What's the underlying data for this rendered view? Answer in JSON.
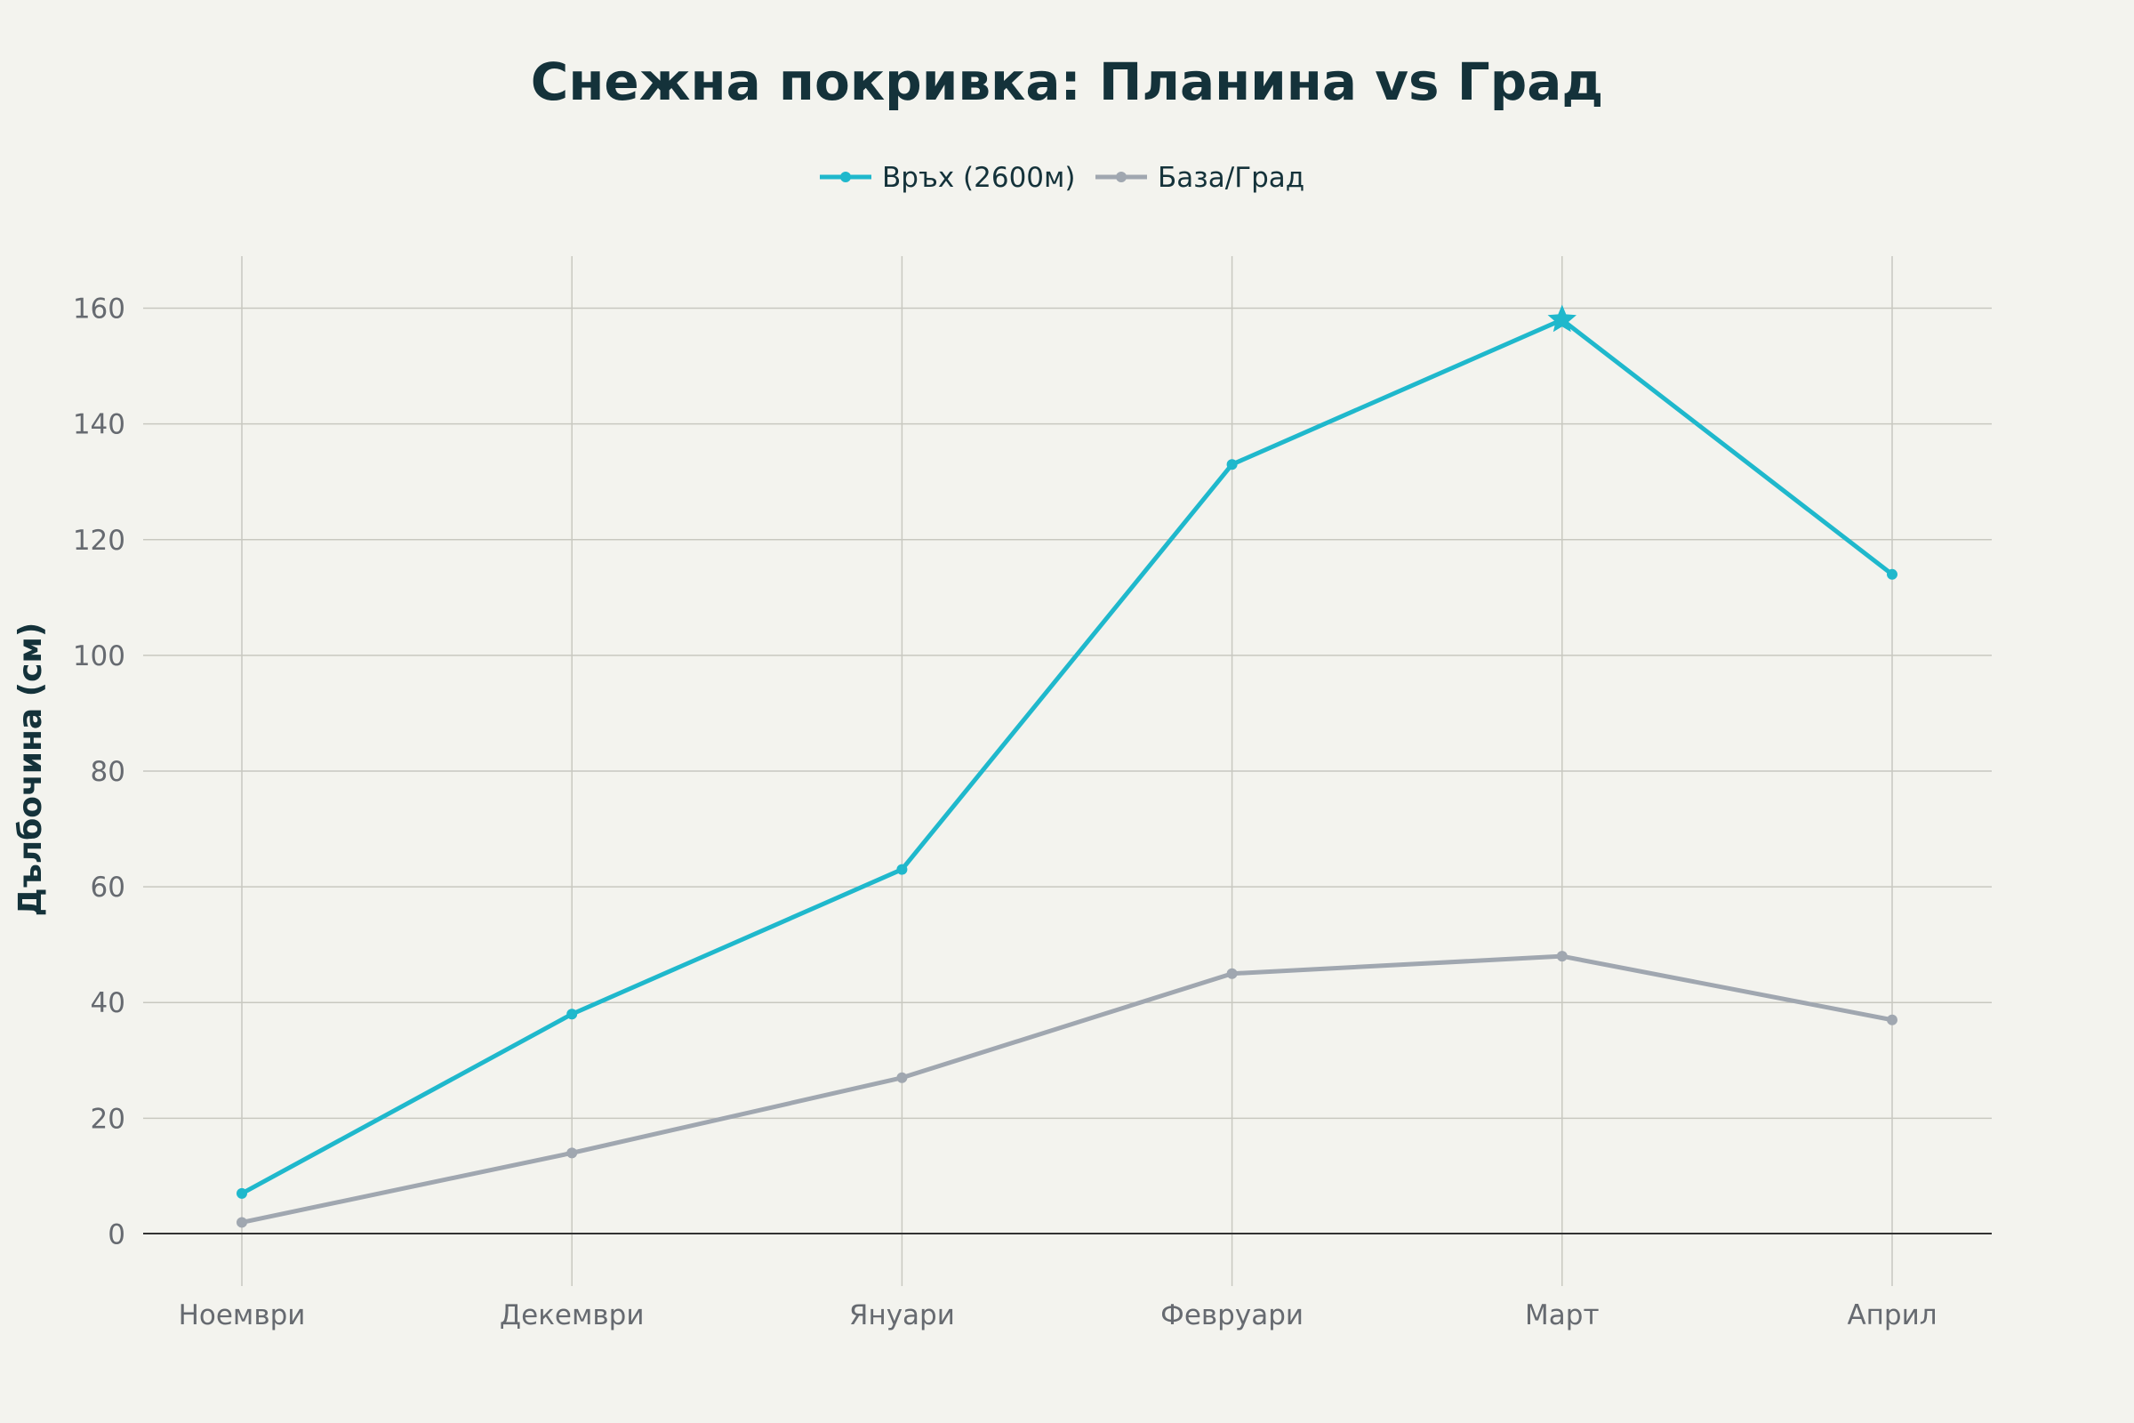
{
  "chart_data": {
    "type": "line",
    "title": "Снежна покривка: Планина vs Град",
    "xlabel": "",
    "ylabel": "Дълбочина (см)",
    "categories": [
      "Ноември",
      "Декември",
      "Януари",
      "Февруари",
      "Март",
      "Април"
    ],
    "series": [
      {
        "name": "Връх (2600м)",
        "values": [
          7,
          38,
          63,
          133,
          158,
          114
        ],
        "color": "#1fb8cc",
        "highlight": {
          "category": "Март",
          "marker": "star"
        }
      },
      {
        "name": "База/Град",
        "values": [
          2,
          14,
          27,
          45,
          48,
          37
        ],
        "color": "#a0a7b0"
      }
    ],
    "ylim": [
      -9,
      169
    ],
    "yticks": [
      0,
      20,
      40,
      60,
      80,
      100,
      120,
      140,
      160
    ],
    "grid": true,
    "legend": "top-center",
    "background": "#f3f3ee"
  }
}
